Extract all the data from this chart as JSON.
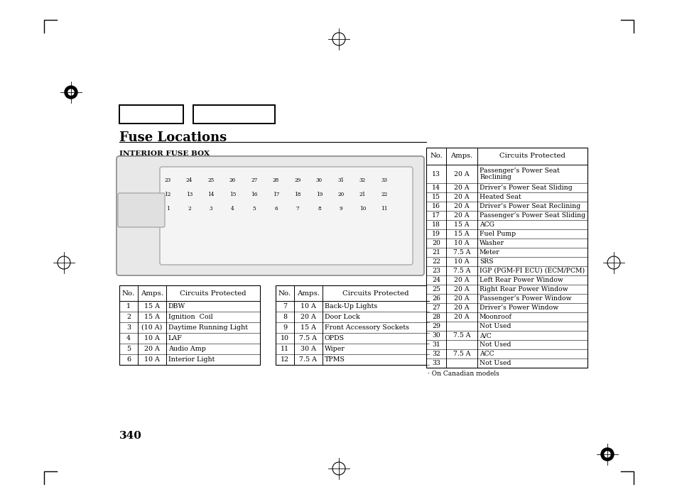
{
  "title": "Fuse Locations",
  "section_label": "INTERIOR FUSE BOX",
  "page_number": "340",
  "bg_color": "#ffffff",
  "table1_headers": [
    "No.",
    "Amps.",
    "Circuits Protected"
  ],
  "table1_rows": [
    [
      "1",
      "15 A",
      "DBW"
    ],
    [
      "2",
      "15 A",
      "Ignition  Coil"
    ],
    [
      "3",
      "(10 A)",
      "Daytime Running Light"
    ],
    [
      "4",
      "10 A",
      "LAF"
    ],
    [
      "5",
      "20 A",
      "Audio Amp"
    ],
    [
      "6",
      "10 A",
      "Interior Light"
    ]
  ],
  "table2_headers": [
    "No.",
    "Amps.",
    "Circuits Protected"
  ],
  "table2_rows": [
    [
      "7",
      "10 A",
      "Back-Up Lights"
    ],
    [
      "8",
      "20 A",
      "Door Lock"
    ],
    [
      "9",
      "15 A",
      "Front Accessory Sockets"
    ],
    [
      "10",
      "7.5 A",
      "OPDS"
    ],
    [
      "11",
      "30 A",
      "Wiper"
    ],
    [
      "12",
      "7.5 A",
      "TPMS"
    ]
  ],
  "table3_headers": [
    "No.",
    "Amps.",
    "Circuits Protected"
  ],
  "table3_rows": [
    [
      "13",
      "20 A",
      "Passenger’s Power Seat\nReclining"
    ],
    [
      "14",
      "20 A",
      "Driver’s Power Seat Sliding"
    ],
    [
      "15",
      "20 A",
      "Heated Seat"
    ],
    [
      "16",
      "20 A",
      "Driver’s Power Seat Reclining"
    ],
    [
      "17",
      "20 A",
      "Passenger’s Power Seat Sliding"
    ],
    [
      "18",
      "15 A",
      "ACG"
    ],
    [
      "19",
      "15 A",
      "Fuel Pump"
    ],
    [
      "20",
      "10 A",
      "Washer"
    ],
    [
      "21",
      "7.5 A",
      "Meter"
    ],
    [
      "22",
      "10 A",
      "SRS"
    ],
    [
      "23",
      "7.5 A",
      "IGP (PGM-FI ECU) (ECM/PCM)"
    ],
    [
      "24",
      "20 A",
      "Left Rear Power Window"
    ],
    [
      "25",
      "20 A",
      "Right Rear Power Window"
    ],
    [
      "26",
      "20 A",
      "Passenger’s Power Window"
    ],
    [
      "27",
      "20 A",
      "Driver’s Power Window"
    ],
    [
      "28",
      "20 A",
      "Moonroof"
    ],
    [
      "29",
      "",
      "Not Used"
    ],
    [
      "30",
      "7.5 A",
      "A/C"
    ],
    [
      "31",
      "",
      "Not Used"
    ],
    [
      "32",
      "7.5 A",
      "ACC"
    ],
    [
      "33",
      "",
      "Not Used"
    ]
  ],
  "footnote": "· On Canadian models",
  "fuse_box_row1": [
    "23",
    "24",
    "25",
    "26",
    "27",
    "28",
    "29",
    "30",
    "31",
    "32",
    "33"
  ],
  "fuse_box_row2": [
    "12",
    "13",
    "14",
    "15",
    "16",
    "17",
    "18",
    "19",
    "20",
    "21",
    "22"
  ],
  "fuse_box_row3": [
    "1",
    "2",
    "3",
    "4",
    "5",
    "6",
    "7",
    "8",
    "9",
    "10",
    "11"
  ]
}
